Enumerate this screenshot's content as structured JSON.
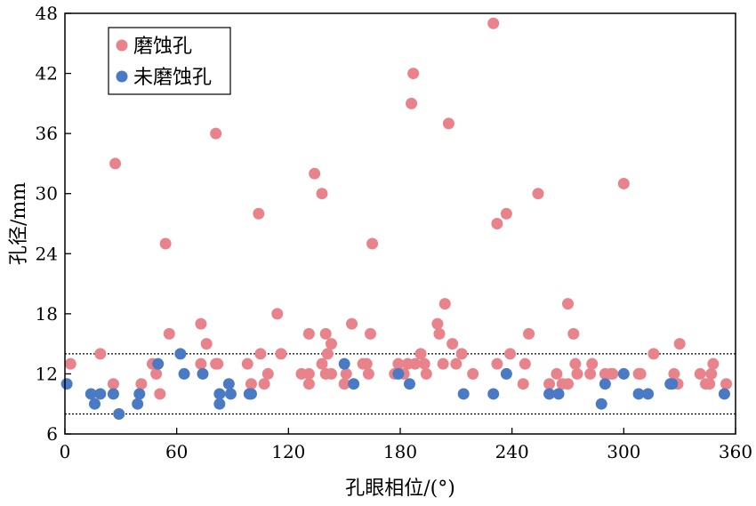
{
  "chart_data": {
    "type": "scatter",
    "xlabel": "孔眼相位/(°)",
    "ylabel": "孔径/mm",
    "xlim": [
      0,
      360
    ],
    "ylim": [
      6,
      48
    ],
    "xticks": [
      "0",
      "60",
      "120",
      "180",
      "240",
      "300",
      "360"
    ],
    "yticks": [
      "6",
      "12",
      "18",
      "24",
      "30",
      "36",
      "42",
      "48"
    ],
    "grid": false,
    "legend_position": "top-left",
    "reference_lines": [
      8,
      14
    ],
    "series": [
      {
        "name": "磨蚀孔",
        "color": "#e8838c",
        "points": [
          [
            3,
            13
          ],
          [
            19,
            14
          ],
          [
            26,
            11
          ],
          [
            27,
            33
          ],
          [
            41,
            11
          ],
          [
            47,
            13
          ],
          [
            49,
            12
          ],
          [
            51,
            10
          ],
          [
            54,
            25
          ],
          [
            56,
            16
          ],
          [
            73,
            17
          ],
          [
            73,
            13
          ],
          [
            76,
            15
          ],
          [
            81,
            13
          ],
          [
            81,
            36
          ],
          [
            82,
            13
          ],
          [
            98,
            13
          ],
          [
            100,
            11
          ],
          [
            104,
            28
          ],
          [
            105,
            14
          ],
          [
            107,
            11
          ],
          [
            109,
            12
          ],
          [
            114,
            18
          ],
          [
            116,
            14
          ],
          [
            127,
            12
          ],
          [
            131,
            12
          ],
          [
            131,
            11
          ],
          [
            131,
            16
          ],
          [
            134,
            32
          ],
          [
            138,
            30
          ],
          [
            138,
            13
          ],
          [
            140,
            12
          ],
          [
            140,
            16
          ],
          [
            141,
            14
          ],
          [
            143,
            12
          ],
          [
            143,
            15
          ],
          [
            150,
            11
          ],
          [
            151,
            12
          ],
          [
            154,
            17
          ],
          [
            160,
            13
          ],
          [
            162,
            13
          ],
          [
            163,
            12
          ],
          [
            164,
            16
          ],
          [
            165,
            25
          ],
          [
            177,
            12
          ],
          [
            179,
            13
          ],
          [
            182,
            12
          ],
          [
            184,
            13
          ],
          [
            186,
            39
          ],
          [
            187,
            42
          ],
          [
            188,
            13
          ],
          [
            191,
            14
          ],
          [
            193,
            13
          ],
          [
            194,
            12
          ],
          [
            200,
            17
          ],
          [
            201,
            16
          ],
          [
            203,
            13
          ],
          [
            204,
            19
          ],
          [
            206,
            37
          ],
          [
            208,
            15
          ],
          [
            210,
            13
          ],
          [
            213,
            14
          ],
          [
            219,
            12
          ],
          [
            230,
            47
          ],
          [
            232,
            27
          ],
          [
            232,
            13
          ],
          [
            237,
            28
          ],
          [
            239,
            14
          ],
          [
            246,
            11
          ],
          [
            247,
            13
          ],
          [
            249,
            16
          ],
          [
            254,
            30
          ],
          [
            260,
            11
          ],
          [
            264,
            12
          ],
          [
            267,
            11
          ],
          [
            270,
            11
          ],
          [
            270,
            19
          ],
          [
            273,
            16
          ],
          [
            274,
            13
          ],
          [
            275,
            12
          ],
          [
            282,
            12
          ],
          [
            283,
            13
          ],
          [
            290,
            12
          ],
          [
            293,
            12
          ],
          [
            294,
            12
          ],
          [
            300,
            31
          ],
          [
            308,
            12
          ],
          [
            309,
            12
          ],
          [
            316,
            14
          ],
          [
            327,
            12
          ],
          [
            329,
            11
          ],
          [
            330,
            15
          ],
          [
            341,
            12
          ],
          [
            344,
            11
          ],
          [
            346,
            11
          ],
          [
            347,
            12
          ],
          [
            348,
            13
          ],
          [
            355,
            11
          ]
        ]
      },
      {
        "name": "未磨蚀孔",
        "color": "#4a7ac4",
        "points": [
          [
            1,
            11
          ],
          [
            14,
            10
          ],
          [
            16,
            9
          ],
          [
            19,
            10
          ],
          [
            26,
            10
          ],
          [
            29,
            8
          ],
          [
            39,
            9
          ],
          [
            40,
            10
          ],
          [
            50,
            13
          ],
          [
            62,
            14
          ],
          [
            64,
            12
          ],
          [
            74,
            12
          ],
          [
            83,
            10
          ],
          [
            83,
            9
          ],
          [
            88,
            11
          ],
          [
            89,
            10
          ],
          [
            99,
            10
          ],
          [
            100,
            10
          ],
          [
            150,
            13
          ],
          [
            155,
            11
          ],
          [
            179,
            12
          ],
          [
            185,
            11
          ],
          [
            214,
            10
          ],
          [
            230,
            10
          ],
          [
            237,
            12
          ],
          [
            260,
            10
          ],
          [
            265,
            10
          ],
          [
            288,
            9
          ],
          [
            290,
            11
          ],
          [
            300,
            12
          ],
          [
            308,
            10
          ],
          [
            313,
            10
          ],
          [
            325,
            11
          ],
          [
            326,
            11
          ],
          [
            354,
            10
          ]
        ]
      }
    ]
  }
}
